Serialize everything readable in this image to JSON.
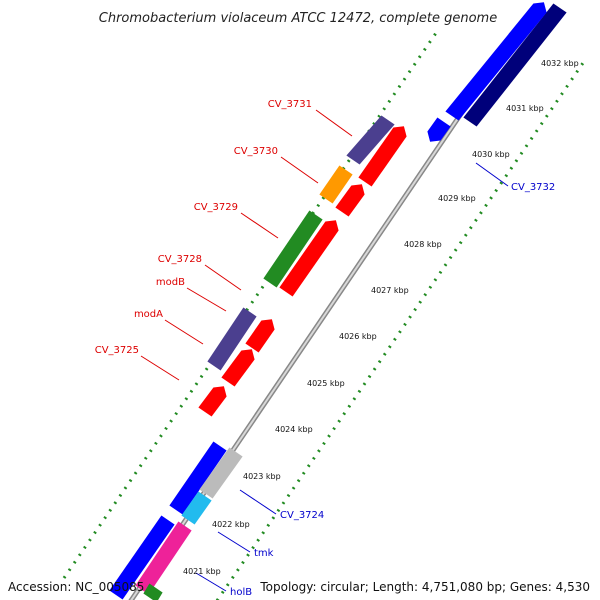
{
  "title": "Chromobacterium violaceum ATCC 12472, complete genome",
  "accession": "Accession: NC_005085",
  "topology": "Topology: circular; Length: 4,751,080 bp; Genes: 4,530",
  "colors": {
    "blue": "#0000ff",
    "navy": "#00007a",
    "red": "#ff0000",
    "slate": "#4b3f8f",
    "green": "#228b22",
    "orange": "#ff9900",
    "gray": "#bbbbbb",
    "cyan": "#22bbee",
    "magenta": "#ee2299",
    "dotted_line": "#228b22",
    "label_red": "#dd0000",
    "label_blue": "#0000cc"
  },
  "ticks": [
    "4021 kbp",
    "4022 kbp",
    "4023 kbp",
    "4024 kbp",
    "4025 kbp",
    "4026 kbp",
    "4027 kbp",
    "4028 kbp",
    "4029 kbp",
    "4030 kbp",
    "4031 kbp",
    "4032 kbp"
  ],
  "genes": [
    {
      "label": "CV_3731",
      "color": "red"
    },
    {
      "label": "CV_3730",
      "color": "red"
    },
    {
      "label": "CV_3729",
      "color": "red"
    },
    {
      "label": "CV_3728",
      "color": "red"
    },
    {
      "label": "modB",
      "color": "red"
    },
    {
      "label": "modA",
      "color": "red"
    },
    {
      "label": "CV_3725",
      "color": "red"
    },
    {
      "label": "CV_3732",
      "color": "blue"
    },
    {
      "label": "CV_3724",
      "color": "blue"
    },
    {
      "label": "tmk",
      "color": "blue"
    },
    {
      "label": "holB",
      "color": "blue"
    }
  ]
}
